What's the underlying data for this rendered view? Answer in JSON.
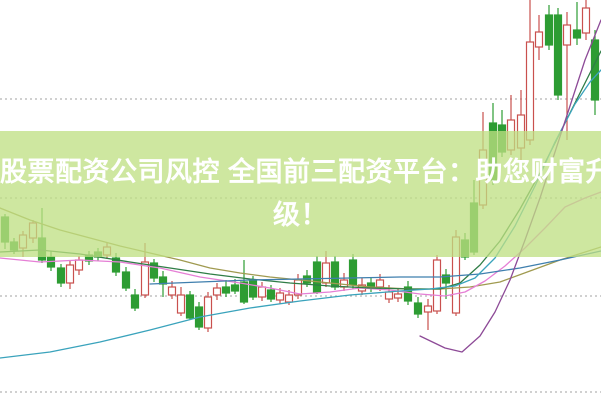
{
  "banner": {
    "line1": "股票配资公司风控 全国前三配资平台：助您财富升",
    "line2": "级！",
    "bg_color": "rgba(190,224,130,0.76)",
    "text_color": "#ffffff"
  },
  "chart_data": {
    "type": "candlestick",
    "title": "",
    "xlabel": "",
    "ylabel": "",
    "x_range": [
      0,
      601
    ],
    "price_range": [
      0,
      100
    ],
    "grid": "horizontal-dotted",
    "legend": "none",
    "axes_labels_visible": false,
    "up_color": "#c9504e",
    "down_color": "#2d9c33",
    "gridlines": {
      "style": "dotted",
      "color": "#b5b5b5",
      "prices": [
        75.25,
        50.5,
        26.0,
        2.0
      ]
    },
    "candles": [
      {
        "x": 5,
        "o": 45.75,
        "c": 39.5,
        "h": 46.5,
        "l": 37.75,
        "d": "down"
      },
      {
        "x": 14,
        "o": 39.5,
        "c": 37.5,
        "h": 40.5,
        "l": 36.5,
        "d": "down"
      },
      {
        "x": 23,
        "o": 38.0,
        "c": 41.25,
        "h": 42.25,
        "l": 35.75,
        "d": "up"
      },
      {
        "x": 33,
        "o": 40.5,
        "c": 44.25,
        "h": 45.0,
        "l": 39.25,
        "d": "up"
      },
      {
        "x": 42,
        "o": 40.5,
        "c": 35.0,
        "h": 48.0,
        "l": 34.25,
        "d": "down"
      },
      {
        "x": 51,
        "o": 35.75,
        "c": 33.25,
        "h": 37.25,
        "l": 32.25,
        "d": "down"
      },
      {
        "x": 61,
        "o": 33.0,
        "c": 29.25,
        "h": 34.0,
        "l": 28.25,
        "d": "down"
      },
      {
        "x": 70,
        "o": 29.25,
        "c": 33.75,
        "h": 34.75,
        "l": 27.75,
        "d": "up"
      },
      {
        "x": 79,
        "o": 32.5,
        "c": 35.0,
        "h": 36.0,
        "l": 31.25,
        "d": "up"
      },
      {
        "x": 89,
        "o": 36.25,
        "c": 34.75,
        "h": 37.25,
        "l": 33.75,
        "d": "down"
      },
      {
        "x": 98,
        "o": 37.0,
        "c": 35.75,
        "h": 38.0,
        "l": 34.75,
        "d": "down"
      },
      {
        "x": 107,
        "o": 36.25,
        "c": 38.25,
        "h": 39.25,
        "l": 35.25,
        "d": "up"
      },
      {
        "x": 116,
        "o": 35.5,
        "c": 32.0,
        "h": 36.75,
        "l": 31.0,
        "d": "down"
      },
      {
        "x": 126,
        "o": 32.0,
        "c": 28.0,
        "h": 33.25,
        "l": 27.25,
        "d": "down"
      },
      {
        "x": 135,
        "o": 26.25,
        "c": 23.0,
        "h": 27.75,
        "l": 22.25,
        "d": "down"
      },
      {
        "x": 145,
        "o": 26.25,
        "c": 34.5,
        "h": 39.25,
        "l": 25.5,
        "d": "up"
      },
      {
        "x": 154,
        "o": 34.25,
        "c": 30.5,
        "h": 35.25,
        "l": 29.5,
        "d": "down"
      },
      {
        "x": 163,
        "o": 30.75,
        "c": 29.0,
        "h": 32.25,
        "l": 25.75,
        "d": "down"
      },
      {
        "x": 172,
        "o": 26.25,
        "c": 28.25,
        "h": 29.75,
        "l": 25.25,
        "d": "up"
      },
      {
        "x": 181,
        "o": 21.75,
        "c": 26.25,
        "h": 28.25,
        "l": 21.0,
        "d": "up"
      },
      {
        "x": 190,
        "o": 26.25,
        "c": 20.5,
        "h": 27.25,
        "l": 20.0,
        "d": "down"
      },
      {
        "x": 199,
        "o": 23.25,
        "c": 18.25,
        "h": 24.5,
        "l": 17.5,
        "d": "down"
      },
      {
        "x": 208,
        "o": 18.0,
        "c": 25.75,
        "h": 27.0,
        "l": 17.0,
        "d": "up"
      },
      {
        "x": 217,
        "o": 26.25,
        "c": 28.0,
        "h": 29.25,
        "l": 25.0,
        "d": "up"
      },
      {
        "x": 226,
        "o": 28.25,
        "c": 26.75,
        "h": 30.0,
        "l": 25.75,
        "d": "down"
      },
      {
        "x": 235,
        "o": 28.75,
        "c": 27.25,
        "h": 30.25,
        "l": 26.5,
        "d": "down"
      },
      {
        "x": 244,
        "o": 29.5,
        "c": 24.5,
        "h": 35.0,
        "l": 24.0,
        "d": "down"
      },
      {
        "x": 253,
        "o": 29.75,
        "c": 25.75,
        "h": 31.0,
        "l": 25.0,
        "d": "down"
      },
      {
        "x": 262,
        "o": 25.75,
        "c": 28.25,
        "h": 29.5,
        "l": 24.75,
        "d": "up"
      },
      {
        "x": 271,
        "o": 27.5,
        "c": 25.25,
        "h": 28.75,
        "l": 24.5,
        "d": "down"
      },
      {
        "x": 280,
        "o": 25.0,
        "c": 26.75,
        "h": 28.0,
        "l": 24.0,
        "d": "up"
      },
      {
        "x": 289,
        "o": 24.5,
        "c": 26.25,
        "h": 27.5,
        "l": 23.75,
        "d": "up"
      },
      {
        "x": 298,
        "o": 26.25,
        "c": 30.0,
        "h": 31.5,
        "l": 25.25,
        "d": "up"
      },
      {
        "x": 307,
        "o": 31.0,
        "c": 29.25,
        "h": 32.5,
        "l": 28.25,
        "d": "down"
      },
      {
        "x": 317,
        "o": 34.5,
        "c": 27.0,
        "h": 36.0,
        "l": 26.5,
        "d": "down"
      },
      {
        "x": 326,
        "o": 29.25,
        "c": 34.25,
        "h": 37.25,
        "l": 28.25,
        "d": "up"
      },
      {
        "x": 335,
        "o": 34.5,
        "c": 28.25,
        "h": 36.0,
        "l": 27.5,
        "d": "down"
      },
      {
        "x": 344,
        "o": 28.25,
        "c": 30.0,
        "h": 31.75,
        "l": 27.25,
        "d": "up"
      },
      {
        "x": 353,
        "o": 35.0,
        "c": 28.75,
        "h": 36.5,
        "l": 27.75,
        "d": "down"
      },
      {
        "x": 362,
        "o": 27.25,
        "c": 28.75,
        "h": 30.5,
        "l": 26.25,
        "d": "up"
      },
      {
        "x": 371,
        "o": 29.25,
        "c": 28.0,
        "h": 30.75,
        "l": 27.0,
        "d": "down"
      },
      {
        "x": 380,
        "o": 28.25,
        "c": 30.0,
        "h": 31.5,
        "l": 27.25,
        "d": "up"
      },
      {
        "x": 389,
        "o": 25.25,
        "c": 27.0,
        "h": 28.75,
        "l": 24.25,
        "d": "up"
      },
      {
        "x": 398,
        "o": 25.5,
        "c": 26.5,
        "h": 27.75,
        "l": 24.5,
        "d": "up"
      },
      {
        "x": 408,
        "o": 28.25,
        "c": 24.75,
        "h": 29.75,
        "l": 23.75,
        "d": "down"
      },
      {
        "x": 418,
        "o": 24.25,
        "c": 21.5,
        "h": 25.75,
        "l": 20.5,
        "d": "down"
      },
      {
        "x": 428,
        "o": 22.0,
        "c": 23.5,
        "h": 25.25,
        "l": 17.5,
        "d": "up"
      },
      {
        "x": 437,
        "o": 22.25,
        "c": 35.0,
        "h": 36.25,
        "l": 21.5,
        "d": "up"
      },
      {
        "x": 446,
        "o": 31.25,
        "c": 29.25,
        "h": 32.75,
        "l": 25.25,
        "d": "down"
      },
      {
        "x": 456,
        "o": 21.75,
        "c": 40.75,
        "h": 42.5,
        "l": 21.0,
        "d": "up"
      },
      {
        "x": 465,
        "o": 40.0,
        "c": 35.75,
        "h": 41.75,
        "l": 35.0,
        "d": "down"
      },
      {
        "x": 474,
        "o": 49.25,
        "c": 37.0,
        "h": 55.0,
        "l": 36.25,
        "d": "down"
      },
      {
        "x": 483,
        "o": 48.75,
        "c": 62.5,
        "h": 72.0,
        "l": 47.75,
        "d": "up"
      },
      {
        "x": 493,
        "o": 69.25,
        "c": 55.0,
        "h": 74.25,
        "l": 53.75,
        "d": "down"
      },
      {
        "x": 502,
        "o": 68.75,
        "c": 62.0,
        "h": 72.5,
        "l": 60.75,
        "d": "down"
      },
      {
        "x": 511,
        "o": 62.5,
        "c": 70.0,
        "h": 76.25,
        "l": 61.25,
        "d": "up"
      },
      {
        "x": 521,
        "o": 63.0,
        "c": 71.25,
        "h": 77.5,
        "l": 60.0,
        "d": "up"
      },
      {
        "x": 530,
        "o": 65.0,
        "c": 89.5,
        "h": 100.0,
        "l": 63.75,
        "d": "up"
      },
      {
        "x": 539,
        "o": 88.25,
        "c": 92.0,
        "h": 96.25,
        "l": 85.0,
        "d": "up"
      },
      {
        "x": 549,
        "o": 96.25,
        "c": 88.75,
        "h": 98.75,
        "l": 87.5,
        "d": "down"
      },
      {
        "x": 558,
        "o": 96.25,
        "c": 76.25,
        "h": 98.0,
        "l": 75.0,
        "d": "down"
      },
      {
        "x": 567,
        "o": 88.75,
        "c": 93.75,
        "h": 97.0,
        "l": 65.0,
        "d": "up"
      },
      {
        "x": 577,
        "o": 92.5,
        "c": 90.5,
        "h": 99.5,
        "l": 88.75,
        "d": "down"
      },
      {
        "x": 586,
        "o": 91.75,
        "c": 98.0,
        "h": 100.0,
        "l": 90.0,
        "d": "up"
      },
      {
        "x": 595,
        "o": 90.0,
        "c": 75.0,
        "h": 92.5,
        "l": 71.25,
        "d": "down"
      }
    ],
    "ma_lines": [
      {
        "name": "ma-olive",
        "color": "#a09a50",
        "points": [
          [
            0,
            48
          ],
          [
            30,
            45
          ],
          [
            60,
            42.5
          ],
          [
            90,
            40.5
          ],
          [
            120,
            38.5
          ],
          [
            150,
            36.75
          ],
          [
            180,
            35
          ],
          [
            210,
            33
          ],
          [
            240,
            31.75
          ],
          [
            270,
            30.75
          ],
          [
            300,
            30
          ],
          [
            340,
            29
          ],
          [
            370,
            28.25
          ],
          [
            410,
            27.75
          ],
          [
            440,
            27.75
          ],
          [
            470,
            28.25
          ],
          [
            500,
            29.5
          ],
          [
            530,
            32.25
          ],
          [
            560,
            35
          ],
          [
            601,
            38.25
          ]
        ]
      },
      {
        "name": "ma-pink",
        "color": "#e57fd5",
        "points": [
          [
            0,
            35.5
          ],
          [
            40,
            34.5
          ],
          [
            80,
            35
          ],
          [
            120,
            34.5
          ],
          [
            160,
            33
          ],
          [
            200,
            30.75
          ],
          [
            240,
            29.25
          ],
          [
            270,
            28
          ],
          [
            300,
            26.5
          ],
          [
            330,
            27
          ],
          [
            360,
            28
          ],
          [
            390,
            27.5
          ],
          [
            420,
            26.5
          ],
          [
            445,
            26
          ],
          [
            465,
            27
          ],
          [
            485,
            29.75
          ],
          [
            505,
            33.5
          ],
          [
            525,
            38
          ],
          [
            545,
            43
          ],
          [
            565,
            48.25
          ],
          [
            585,
            50.5
          ],
          [
            601,
            52
          ]
        ]
      },
      {
        "name": "ma-darkgreen",
        "color": "#2f7d46",
        "points": [
          [
            0,
            37
          ],
          [
            40,
            37.5
          ],
          [
            80,
            36.5
          ],
          [
            130,
            34.5
          ],
          [
            170,
            33
          ],
          [
            210,
            31.5
          ],
          [
            250,
            30.25
          ],
          [
            290,
            29.25
          ],
          [
            330,
            28.5
          ],
          [
            370,
            28
          ],
          [
            410,
            27.75
          ],
          [
            440,
            27.75
          ],
          [
            460,
            29.25
          ],
          [
            480,
            33.75
          ],
          [
            500,
            39.75
          ],
          [
            520,
            47.75
          ],
          [
            540,
            56.75
          ],
          [
            560,
            66.75
          ],
          [
            580,
            76.75
          ],
          [
            601,
            87.25
          ]
        ]
      },
      {
        "name": "ma-blue-flat",
        "color": "#3f7fae",
        "points": [
          [
            150,
            29
          ],
          [
            200,
            29.5
          ],
          [
            250,
            30
          ],
          [
            300,
            30.25
          ],
          [
            350,
            30.5
          ],
          [
            400,
            30.75
          ],
          [
            440,
            30.75
          ],
          [
            480,
            31.5
          ],
          [
            520,
            33
          ],
          [
            560,
            35
          ],
          [
            601,
            37.25
          ]
        ]
      },
      {
        "name": "ma-cyan-long",
        "color": "#3aa3bc",
        "points": [
          [
            0,
            10.5
          ],
          [
            50,
            12
          ],
          [
            100,
            14.5
          ],
          [
            150,
            17.5
          ],
          [
            200,
            20.75
          ],
          [
            250,
            23
          ],
          [
            300,
            24.75
          ],
          [
            350,
            26.25
          ],
          [
            400,
            27.25
          ],
          [
            430,
            27.75
          ],
          [
            455,
            28.5
          ],
          [
            475,
            30.5
          ],
          [
            495,
            35.5
          ],
          [
            515,
            43.5
          ],
          [
            535,
            53.5
          ],
          [
            555,
            64.5
          ],
          [
            575,
            74
          ],
          [
            590,
            79.5
          ],
          [
            601,
            82.5
          ]
        ]
      },
      {
        "name": "ma-purple",
        "color": "#8d4a97",
        "points": [
          [
            420,
            16
          ],
          [
            445,
            13
          ],
          [
            462,
            12
          ],
          [
            480,
            16
          ],
          [
            495,
            22
          ],
          [
            510,
            30
          ],
          [
            525,
            40
          ],
          [
            540,
            50.5
          ],
          [
            555,
            62
          ],
          [
            570,
            73.5
          ],
          [
            585,
            85
          ],
          [
            601,
            95
          ]
        ]
      }
    ]
  }
}
